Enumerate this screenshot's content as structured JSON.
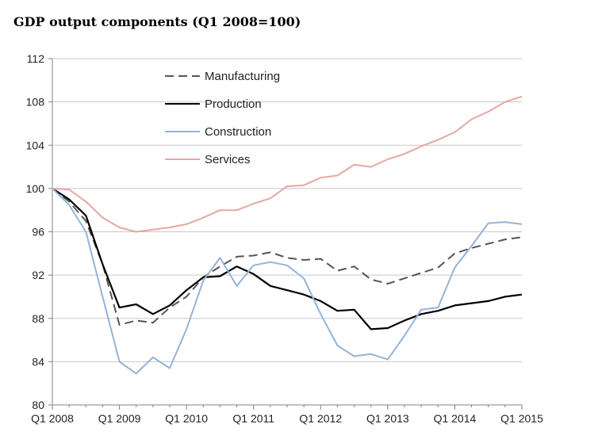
{
  "chart_data": {
    "type": "line",
    "title": "GDP output components (Q1 2008=100)",
    "xlabel": "",
    "ylabel": "",
    "ylim": [
      80,
      112
    ],
    "yticks": [
      80,
      84,
      88,
      92,
      96,
      100,
      104,
      108,
      112
    ],
    "grid": "horizontal",
    "legend_position": "top-left",
    "x": [
      "Q1 2008",
      "Q2 2008",
      "Q3 2008",
      "Q4 2008",
      "Q1 2009",
      "Q2 2009",
      "Q3 2009",
      "Q4 2009",
      "Q1 2010",
      "Q2 2010",
      "Q3 2010",
      "Q4 2010",
      "Q1 2011",
      "Q2 2011",
      "Q3 2011",
      "Q4 2011",
      "Q1 2012",
      "Q2 2012",
      "Q3 2012",
      "Q4 2012",
      "Q1 2013",
      "Q2 2013",
      "Q3 2013",
      "Q4 2013",
      "Q1 2014",
      "Q2 2014",
      "Q3 2014",
      "Q4 2014",
      "Q1 2015"
    ],
    "x_tick_labels": [
      "Q1 2008",
      "Q1 2009",
      "Q1 2010",
      "Q1 2011",
      "Q1 2012",
      "Q1 2013",
      "Q1 2014",
      "Q1 2015"
    ],
    "x_tick_indices": [
      0,
      4,
      8,
      12,
      16,
      20,
      24,
      28
    ],
    "series": [
      {
        "name": "Manufacturing",
        "color": "#555555",
        "dash": "dashed",
        "values": [
          100,
          98.8,
          97.0,
          93.0,
          87.4,
          87.8,
          87.6,
          89.0,
          90.0,
          91.8,
          92.8,
          93.7,
          93.8,
          94.1,
          93.6,
          93.4,
          93.5,
          92.4,
          92.8,
          91.6,
          91.2,
          91.7,
          92.2,
          92.7,
          94.0,
          94.5,
          94.9,
          95.3,
          95.5
        ]
      },
      {
        "name": "Production",
        "color": "#000000",
        "dash": "solid",
        "values": [
          100,
          99.0,
          97.5,
          93.0,
          89.0,
          89.3,
          88.4,
          89.2,
          90.6,
          91.8,
          91.9,
          92.8,
          92.1,
          91.0,
          90.6,
          90.2,
          89.6,
          88.7,
          88.8,
          87.0,
          87.1,
          87.8,
          88.4,
          88.7,
          89.2,
          89.4,
          89.6,
          90.0,
          90.2
        ]
      },
      {
        "name": "Construction",
        "color": "#95b3d7",
        "dash": "solid",
        "values": [
          100,
          98.5,
          96.0,
          90.0,
          84.0,
          82.9,
          84.4,
          83.4,
          87.0,
          91.5,
          93.6,
          91.0,
          92.9,
          93.2,
          92.9,
          91.7,
          88.4,
          85.5,
          84.5,
          84.7,
          84.2,
          86.4,
          88.8,
          89.0,
          92.7,
          94.7,
          96.8,
          96.9,
          96.7
        ]
      },
      {
        "name": "Services",
        "color": "#e6a7a3",
        "dash": "solid",
        "values": [
          100,
          99.9,
          98.8,
          97.3,
          96.4,
          96.0,
          96.2,
          96.4,
          96.7,
          97.3,
          98.0,
          98.0,
          98.6,
          99.1,
          100.2,
          100.3,
          101.0,
          101.2,
          102.2,
          102.0,
          102.7,
          103.2,
          103.9,
          104.5,
          105.2,
          106.4,
          107.1,
          108.0,
          108.5
        ]
      }
    ]
  }
}
